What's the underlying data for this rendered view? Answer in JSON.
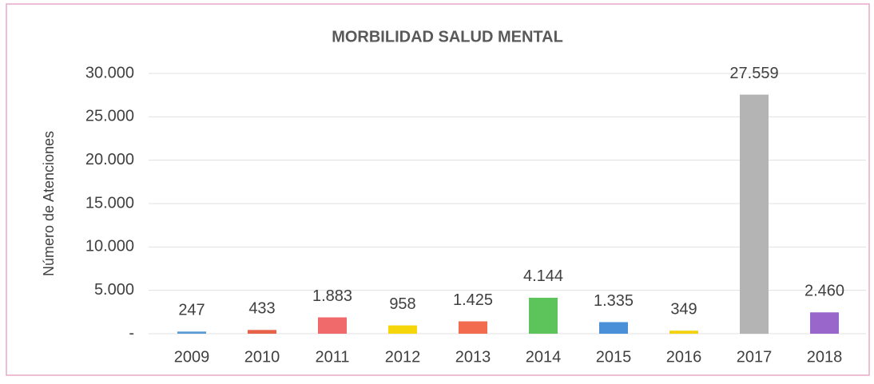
{
  "chart_data": {
    "type": "bar",
    "title": "MORBILIDAD SALUD MENTAL",
    "y_label": "Número de Atenciones",
    "categories": [
      "2009",
      "2010",
      "2011",
      "2012",
      "2013",
      "2014",
      "2015",
      "2016",
      "2017",
      "2018"
    ],
    "values": [
      247,
      433,
      1883,
      958,
      1425,
      4144,
      1335,
      349,
      27559,
      2460
    ],
    "value_labels": [
      "247",
      "433",
      "1.883",
      "958",
      "1.425",
      "4.144",
      "1.335",
      "349",
      "27.559",
      "2.460"
    ],
    "colors": [
      "#5b9bd5",
      "#e8624a",
      "#f0696b",
      "#f5d60a",
      "#f26b4e",
      "#5cc45a",
      "#4a90d9",
      "#f2d20f",
      "#b4b4b4",
      "#9966cc"
    ],
    "ylim": [
      0,
      30000
    ],
    "yticks": [
      {
        "value": 0,
        "label": "-"
      },
      {
        "value": 5000,
        "label": "5.000"
      },
      {
        "value": 10000,
        "label": "10.000"
      },
      {
        "value": 15000,
        "label": "15.000"
      },
      {
        "value": 20000,
        "label": "20.000"
      },
      {
        "value": 25000,
        "label": "25.000"
      },
      {
        "value": 30000,
        "label": "30.000"
      }
    ],
    "grid": true
  }
}
